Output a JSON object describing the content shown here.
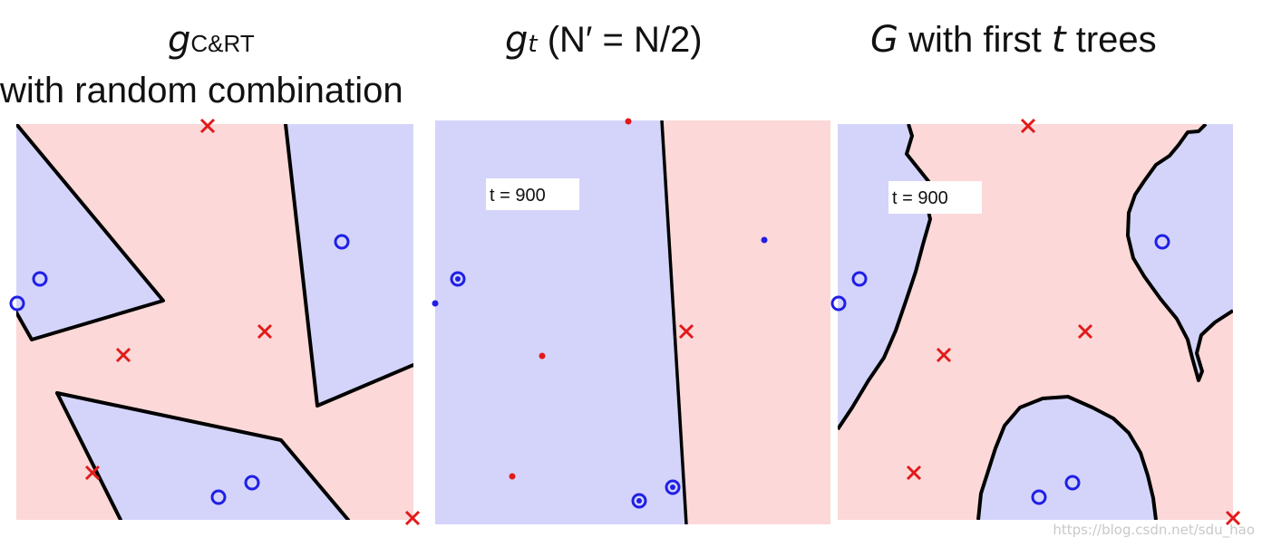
{
  "panels": [
    {
      "title_main": "g",
      "title_sub": "C&RT",
      "title_line2": "with random combination"
    },
    {
      "title_main": "g",
      "title_sub": "t",
      "title_rest": " (N′ = N/2)",
      "label": "t = 900"
    },
    {
      "title_main": "G",
      "title_rest": " with first ",
      "title_t": "t",
      "title_end": " trees",
      "label": "t = 900"
    }
  ],
  "colors": {
    "pos_region": "#d4d4fb",
    "neg_region": "#fcd8d8",
    "boundary": "#000000",
    "circle": "#1f1fe6",
    "cross": "#e21a1a"
  },
  "watermark": "https://blog.csdn.net/sdu_hao"
}
